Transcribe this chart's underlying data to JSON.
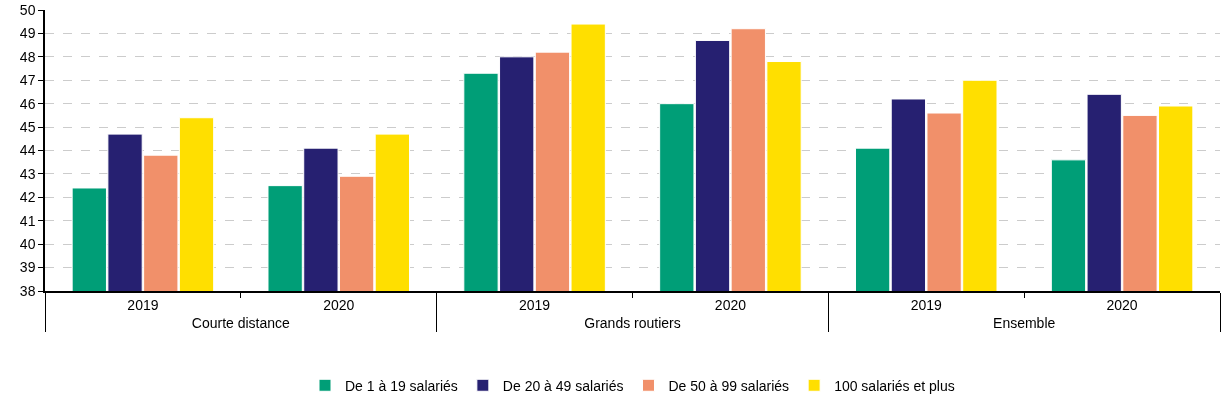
{
  "chart_data": {
    "type": "bar",
    "categories": [
      "2019",
      "2020",
      "2019",
      "2020",
      "2019",
      "2020"
    ],
    "annotations": [
      "Courte distance",
      "Grands routiers",
      "Ensemble"
    ],
    "series": [
      {
        "name": "De 1 à 19 salariés",
        "color": "#009e77",
        "values": [
          42.4,
          42.5,
          47.3,
          46.0,
          44.1,
          43.6
        ]
      },
      {
        "name": "De 20 à 49 salariés",
        "color": "#262071",
        "values": [
          44.7,
          44.1,
          48.0,
          48.7,
          46.2,
          46.4
        ]
      },
      {
        "name": "De 50 à 99 salariés",
        "color": "#f1906a",
        "values": [
          43.8,
          42.9,
          48.2,
          49.2,
          45.6,
          45.5
        ]
      },
      {
        "name": "100 salariés et plus",
        "color": "#ffdf00",
        "values": [
          45.4,
          44.7,
          49.4,
          47.8,
          47.0,
          45.9
        ]
      }
    ],
    "ylim": [
      38,
      50
    ],
    "yticks": [
      38,
      39,
      40,
      41,
      42,
      43,
      44,
      45,
      46,
      47,
      48,
      49,
      50
    ],
    "grid": "y",
    "legend": "bottom"
  }
}
